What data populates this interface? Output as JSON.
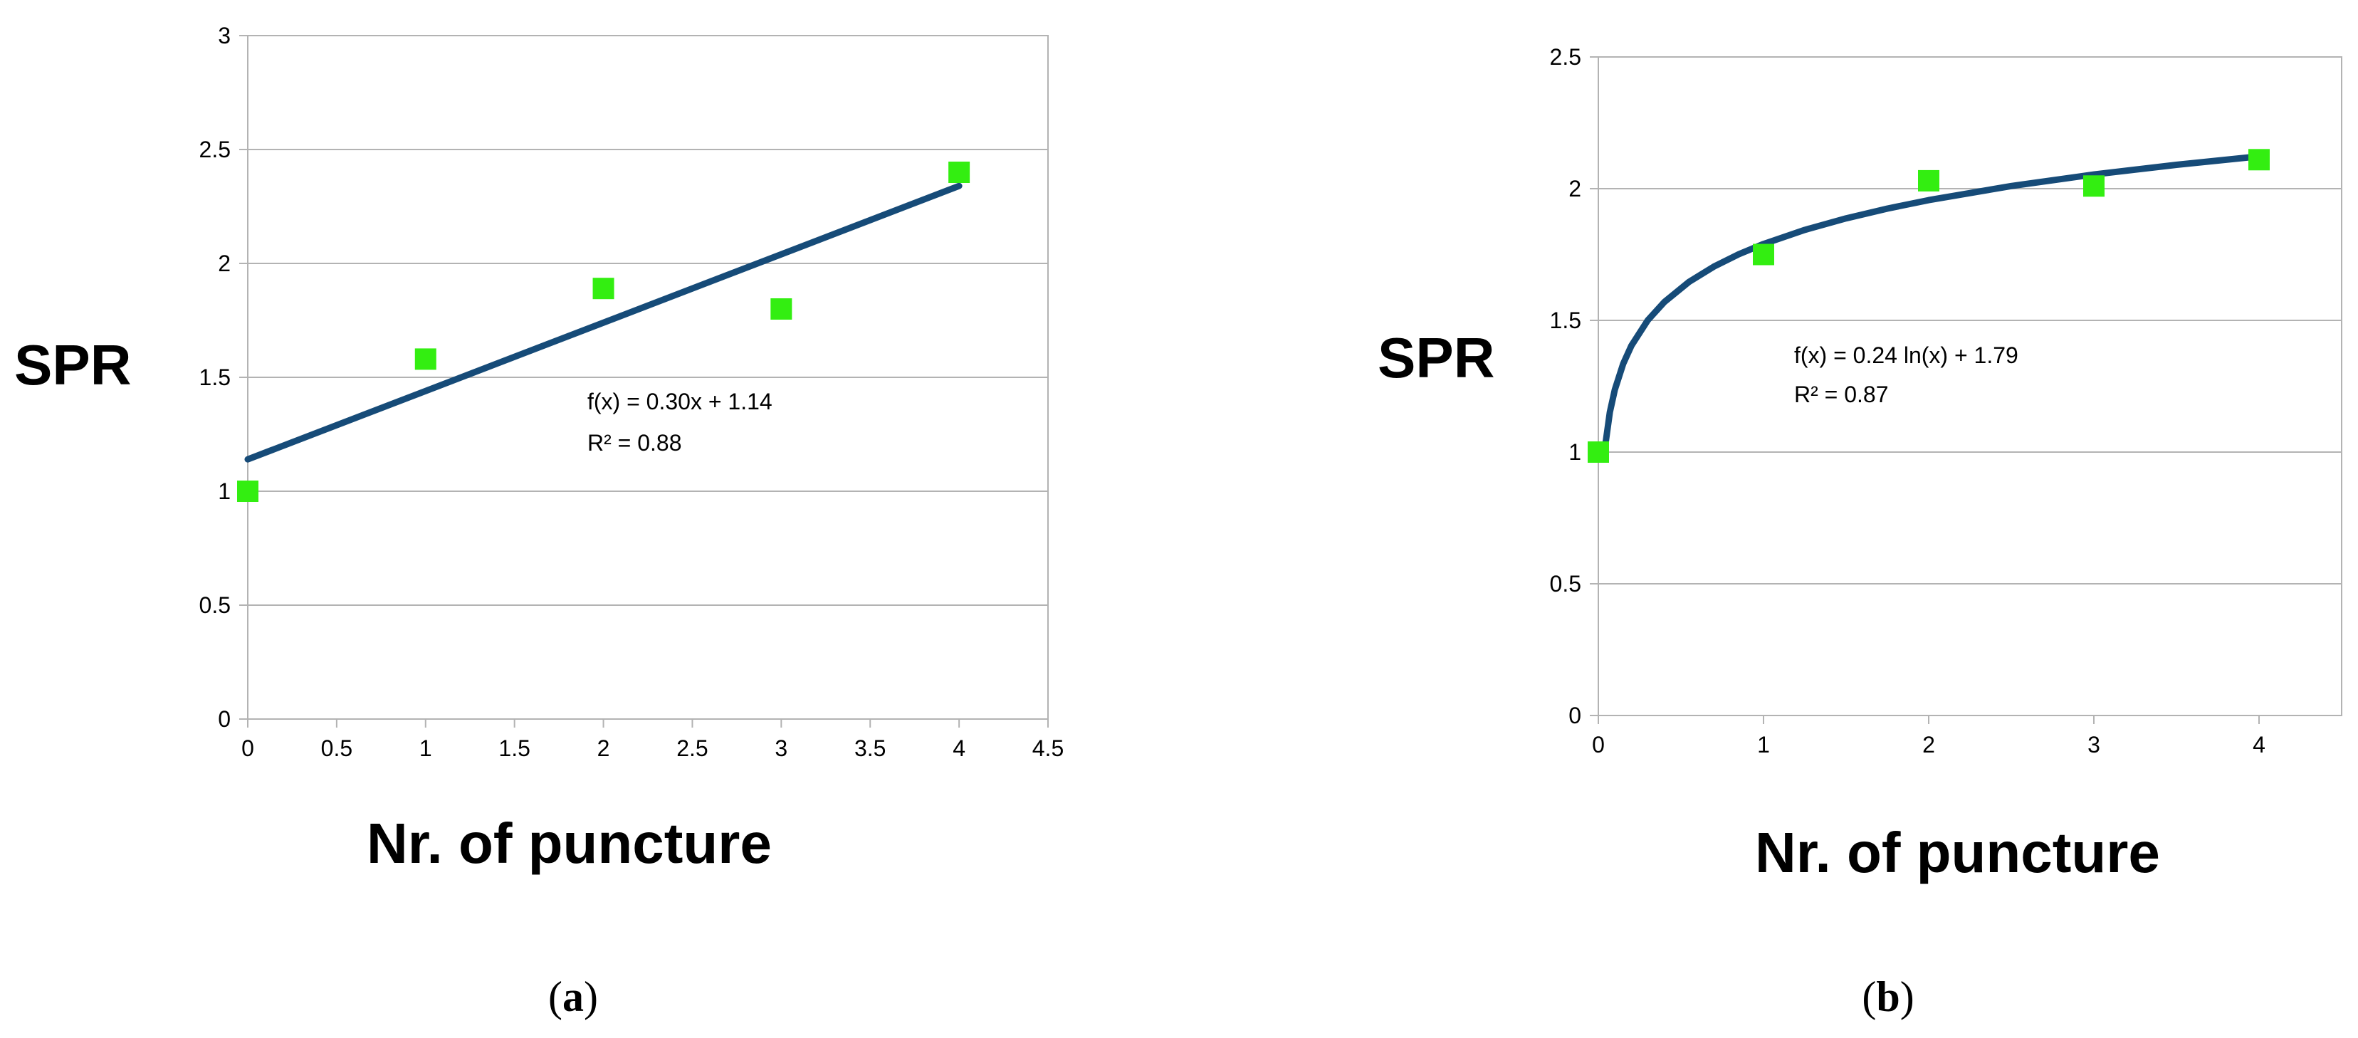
{
  "chart_data": [
    {
      "type": "scatter",
      "ylabel": "SPR",
      "xlabel": "Nr. of puncture",
      "xlim": [
        0,
        4.5
      ],
      "ylim": [
        0,
        3
      ],
      "x_ticks": [
        "0",
        "0.5",
        "1",
        "1.5",
        "2",
        "2.5",
        "3",
        "3.5",
        "4",
        "4.5"
      ],
      "y_ticks": [
        "0",
        "0.5",
        "1",
        "1.5",
        "2",
        "2.5",
        "3"
      ],
      "grid": "horizontal",
      "series": [
        {
          "points": [
            [
              0,
              1.0
            ],
            [
              1,
              1.58
            ],
            [
              2,
              1.89
            ],
            [
              3,
              1.8
            ],
            [
              4,
              2.4
            ]
          ],
          "color": "#33ee11",
          "marker": "square"
        }
      ],
      "trendline": {
        "kind": "linear",
        "slope": 0.3,
        "intercept": 1.14,
        "x_range": [
          0,
          4
        ],
        "color": "#164b78"
      },
      "equation": "f(x) = 0.30x + 1.14",
      "r2": "R² = 0.88",
      "caption": {
        "open": "(",
        "letter": "a",
        "close": ")"
      }
    },
    {
      "type": "scatter",
      "ylabel": "SPR",
      "xlabel": "Nr. of puncture",
      "xlim": [
        0,
        4.5
      ],
      "ylim": [
        0,
        2.5
      ],
      "x_ticks": [
        "0",
        "1",
        "2",
        "3",
        "4"
      ],
      "y_ticks": [
        "0",
        "0.5",
        "1",
        "1.5",
        "2",
        "2.5"
      ],
      "grid": "horizontal",
      "series": [
        {
          "points": [
            [
              0,
              1.0
            ],
            [
              1,
              1.75
            ],
            [
              2,
              2.03
            ],
            [
              3,
              2.01
            ],
            [
              4,
              2.11
            ]
          ],
          "color": "#33ee11",
          "marker": "square"
        }
      ],
      "trendline": {
        "kind": "log",
        "a": 0.24,
        "b": 1.79,
        "x_range": [
          0,
          4
        ],
        "color": "#164b78"
      },
      "equation": "f(x) = 0.24 ln(x) + 1.79",
      "r2": "R² = 0.87",
      "caption": {
        "open": "(",
        "letter": "b",
        "close": ")"
      }
    }
  ]
}
